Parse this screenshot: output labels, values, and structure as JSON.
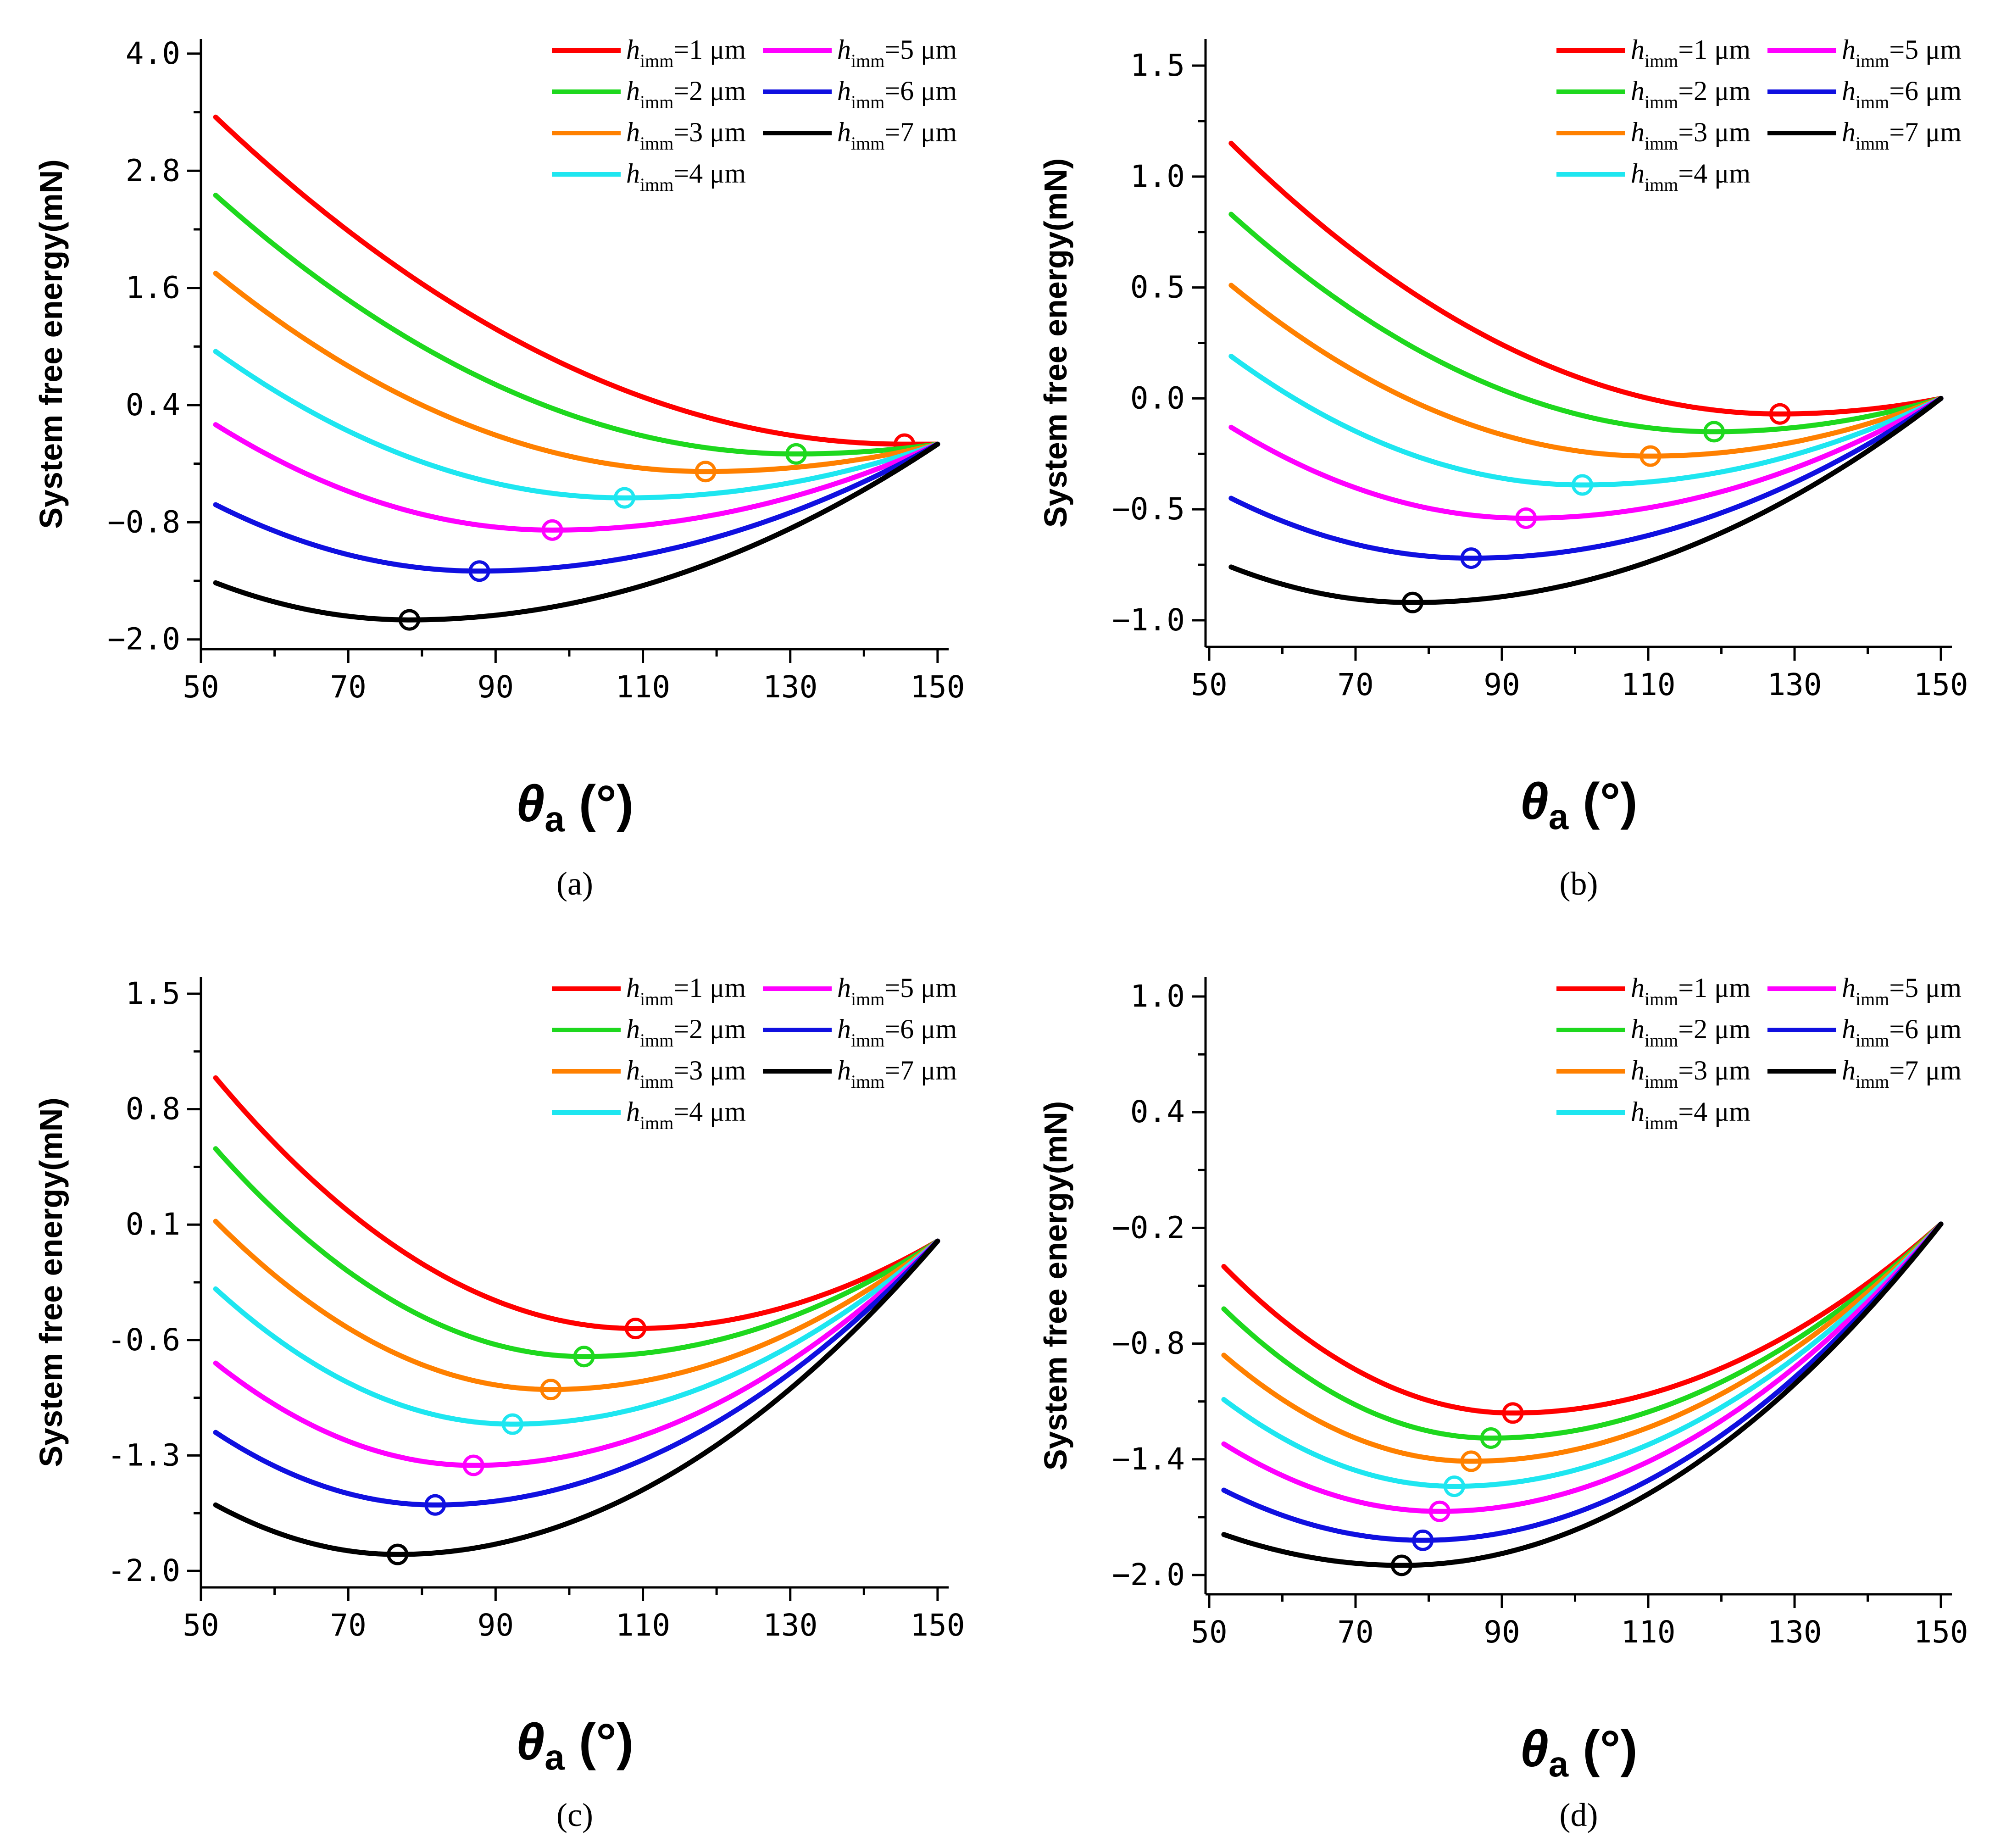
{
  "colors": {
    "red": "#ff0000",
    "green": "#1ed81e",
    "orange": "#ff8000",
    "cyan": "#1ee6f0",
    "magenta": "#ff00ff",
    "blue": "#1010e0",
    "black": "#000000"
  },
  "legend_entries": [
    {
      "italic": "h",
      "sub": "imm",
      "rest": "=1 μm",
      "color": "red"
    },
    {
      "italic": "h",
      "sub": "imm",
      "rest": "=2 μm",
      "color": "green"
    },
    {
      "italic": "h",
      "sub": "imm",
      "rest": "=3 μm",
      "color": "orange"
    },
    {
      "italic": "h",
      "sub": "imm",
      "rest": "=4 μm",
      "color": "cyan"
    },
    {
      "italic": "h",
      "sub": "imm",
      "rest": "=5 μm",
      "color": "magenta"
    },
    {
      "italic": "h",
      "sub": "imm",
      "rest": "=6 μm",
      "color": "blue"
    },
    {
      "italic": "h",
      "sub": "imm",
      "rest": "=7 μm",
      "color": "black"
    }
  ],
  "chart_data": [
    {
      "type": "line",
      "panel_label": "(a)",
      "ylabel": "System free energy(mN)",
      "xlabel_symbol": "θ",
      "xlabel_sub": "a",
      "xlabel_unit": " (°)",
      "xlim": [
        50,
        151.5
      ],
      "ylim": [
        -2.1,
        4.15
      ],
      "xticks": [
        50,
        70,
        90,
        110,
        130,
        150
      ],
      "xtick_labels": [
        "50",
        "70",
        "90",
        "110",
        "130",
        "150"
      ],
      "yticks": [
        4.0,
        2.8,
        1.6,
        0.4,
        -0.8,
        -2.0
      ],
      "ytick_labels": [
        "4.0",
        "2.8",
        "1.6",
        "0.4",
        "−0.8",
        "−2.0"
      ],
      "x_start": 52,
      "x_end": 150,
      "series": [
        {
          "name": "h_imm=1 μm",
          "color": "red",
          "y_start": 3.35,
          "x_min": 145.5,
          "y_min": 0.0,
          "y_end": 0.0
        },
        {
          "name": "h_imm=2 μm",
          "color": "green",
          "y_start": 2.55,
          "x_min": 130.8,
          "y_min": -0.1,
          "y_end": 0.0
        },
        {
          "name": "h_imm=3 μm",
          "color": "orange",
          "y_start": 1.75,
          "x_min": 118.5,
          "y_min": -0.28,
          "y_end": 0.0
        },
        {
          "name": "h_imm=4 μm",
          "color": "cyan",
          "y_start": 0.95,
          "x_min": 107.5,
          "y_min": -0.55,
          "y_end": 0.0
        },
        {
          "name": "h_imm=5 μm",
          "color": "magenta",
          "y_start": 0.2,
          "x_min": 97.7,
          "y_min": -0.88,
          "y_end": 0.0
        },
        {
          "name": "h_imm=6 μm",
          "color": "blue",
          "y_start": -0.62,
          "x_min": 87.8,
          "y_min": -1.3,
          "y_end": 0.0
        },
        {
          "name": "h_imm=7 μm",
          "color": "black",
          "y_start": -1.42,
          "x_min": 78.3,
          "y_min": -1.8,
          "y_end": 0.0
        }
      ]
    },
    {
      "type": "line",
      "panel_label": "(b)",
      "ylabel": "System free energy(mN)",
      "xlabel_symbol": "θ",
      "xlabel_sub": "a",
      "xlabel_unit": " (°)",
      "xlim": [
        49.5,
        151.5
      ],
      "ylim": [
        -1.12,
        1.62
      ],
      "xticks": [
        50,
        70,
        90,
        110,
        130,
        150
      ],
      "xtick_labels": [
        "50",
        "70",
        "90",
        "110",
        "130",
        "150"
      ],
      "yticks": [
        1.5,
        1.0,
        0.5,
        0.0,
        -0.5,
        -1.0
      ],
      "ytick_labels": [
        "1.5",
        "1.0",
        "0.5",
        "0.0",
        "−0.5",
        "−1.0"
      ],
      "x_start": 53,
      "x_end": 150,
      "series": [
        {
          "name": "h_imm=1 μm",
          "color": "red",
          "y_start": 1.15,
          "x_min": 128.0,
          "y_min": -0.07,
          "y_end": 0.0
        },
        {
          "name": "h_imm=2 μm",
          "color": "green",
          "y_start": 0.83,
          "x_min": 119.0,
          "y_min": -0.15,
          "y_end": 0.0
        },
        {
          "name": "h_imm=3 μm",
          "color": "orange",
          "y_start": 0.51,
          "x_min": 110.3,
          "y_min": -0.26,
          "y_end": 0.0
        },
        {
          "name": "h_imm=4 μm",
          "color": "cyan",
          "y_start": 0.19,
          "x_min": 101.0,
          "y_min": -0.39,
          "y_end": 0.0
        },
        {
          "name": "h_imm=5 μm",
          "color": "magenta",
          "y_start": -0.13,
          "x_min": 93.3,
          "y_min": -0.54,
          "y_end": 0.0
        },
        {
          "name": "h_imm=6 μm",
          "color": "blue",
          "y_start": -0.45,
          "x_min": 85.8,
          "y_min": -0.72,
          "y_end": 0.0
        },
        {
          "name": "h_imm=7 μm",
          "color": "black",
          "y_start": -0.76,
          "x_min": 77.8,
          "y_min": -0.92,
          "y_end": 0.0
        }
      ]
    },
    {
      "type": "line",
      "panel_label": "(c)",
      "ylabel": "System free energy(mN)",
      "xlabel_symbol": "θ",
      "xlabel_sub": "a",
      "xlabel_unit": " (°)",
      "xlim": [
        50,
        151.5
      ],
      "ylim": [
        -2.1,
        1.6
      ],
      "xticks": [
        50,
        70,
        90,
        110,
        130,
        150
      ],
      "xtick_labels": [
        "50",
        "70",
        "90",
        "110",
        "130",
        "150"
      ],
      "yticks": [
        1.5,
        0.8,
        0.1,
        -0.6,
        -1.3,
        -2.0
      ],
      "ytick_labels": [
        "1.5",
        "0.8",
        "0.1",
        "-0.6",
        "-1.3",
        "-2.0"
      ],
      "x_start": 52,
      "x_end": 150,
      "series": [
        {
          "name": "h_imm=1 μm",
          "color": "red",
          "y_start": 0.99,
          "x_min": 109.0,
          "y_min": -0.53,
          "y_end": 0.0
        },
        {
          "name": "h_imm=2 μm",
          "color": "green",
          "y_start": 0.56,
          "x_min": 102.0,
          "y_min": -0.7,
          "y_end": 0.0
        },
        {
          "name": "h_imm=3 μm",
          "color": "orange",
          "y_start": 0.12,
          "x_min": 97.5,
          "y_min": -0.9,
          "y_end": 0.0
        },
        {
          "name": "h_imm=4 μm",
          "color": "cyan",
          "y_start": -0.29,
          "x_min": 92.3,
          "y_min": -1.11,
          "y_end": 0.0
        },
        {
          "name": "h_imm=5 μm",
          "color": "magenta",
          "y_start": -0.74,
          "x_min": 87.0,
          "y_min": -1.36,
          "y_end": 0.0
        },
        {
          "name": "h_imm=6 μm",
          "color": "blue",
          "y_start": -1.16,
          "x_min": 81.8,
          "y_min": -1.6,
          "y_end": 0.0
        },
        {
          "name": "h_imm=7 μm",
          "color": "black",
          "y_start": -1.6,
          "x_min": 76.7,
          "y_min": -1.9,
          "y_end": 0.0
        }
      ]
    },
    {
      "type": "line",
      "panel_label": "(d)",
      "ylabel": "System free energy(mN)",
      "xlabel_symbol": "θ",
      "xlabel_sub": "a",
      "xlabel_unit": " (°)",
      "xlim": [
        49.5,
        151.5
      ],
      "ylim": [
        -2.1,
        1.1
      ],
      "xticks": [
        50,
        70,
        90,
        110,
        130,
        150
      ],
      "xtick_labels": [
        "50",
        "70",
        "90",
        "110",
        "130",
        "150"
      ],
      "yticks": [
        1.0,
        0.4,
        -0.2,
        -0.8,
        -1.4,
        -2.0
      ],
      "ytick_labels": [
        "1.0",
        "0.4",
        "−0.2",
        "−0.8",
        "−1.4",
        "−2.0"
      ],
      "x_start": 52,
      "x_end": 150,
      "series": [
        {
          "name": "h_imm=1 μm",
          "color": "red",
          "y_start": -0.4,
          "x_min": 91.5,
          "y_min": -1.16,
          "y_end": -0.18
        },
        {
          "name": "h_imm=2 μm",
          "color": "green",
          "y_start": -0.62,
          "x_min": 88.5,
          "y_min": -1.29,
          "y_end": -0.18
        },
        {
          "name": "h_imm=3 μm",
          "color": "orange",
          "y_start": -0.86,
          "x_min": 85.8,
          "y_min": -1.41,
          "y_end": -0.18
        },
        {
          "name": "h_imm=4 μm",
          "color": "cyan",
          "y_start": -1.09,
          "x_min": 83.5,
          "y_min": -1.54,
          "y_end": -0.18
        },
        {
          "name": "h_imm=5 μm",
          "color": "magenta",
          "y_start": -1.32,
          "x_min": 81.5,
          "y_min": -1.67,
          "y_end": -0.18
        },
        {
          "name": "h_imm=6 μm",
          "color": "blue",
          "y_start": -1.56,
          "x_min": 79.2,
          "y_min": -1.82,
          "y_end": -0.18
        },
        {
          "name": "h_imm=7 μm",
          "color": "black",
          "y_start": -1.79,
          "x_min": 76.3,
          "y_min": -1.95,
          "y_end": -0.18
        }
      ]
    }
  ]
}
